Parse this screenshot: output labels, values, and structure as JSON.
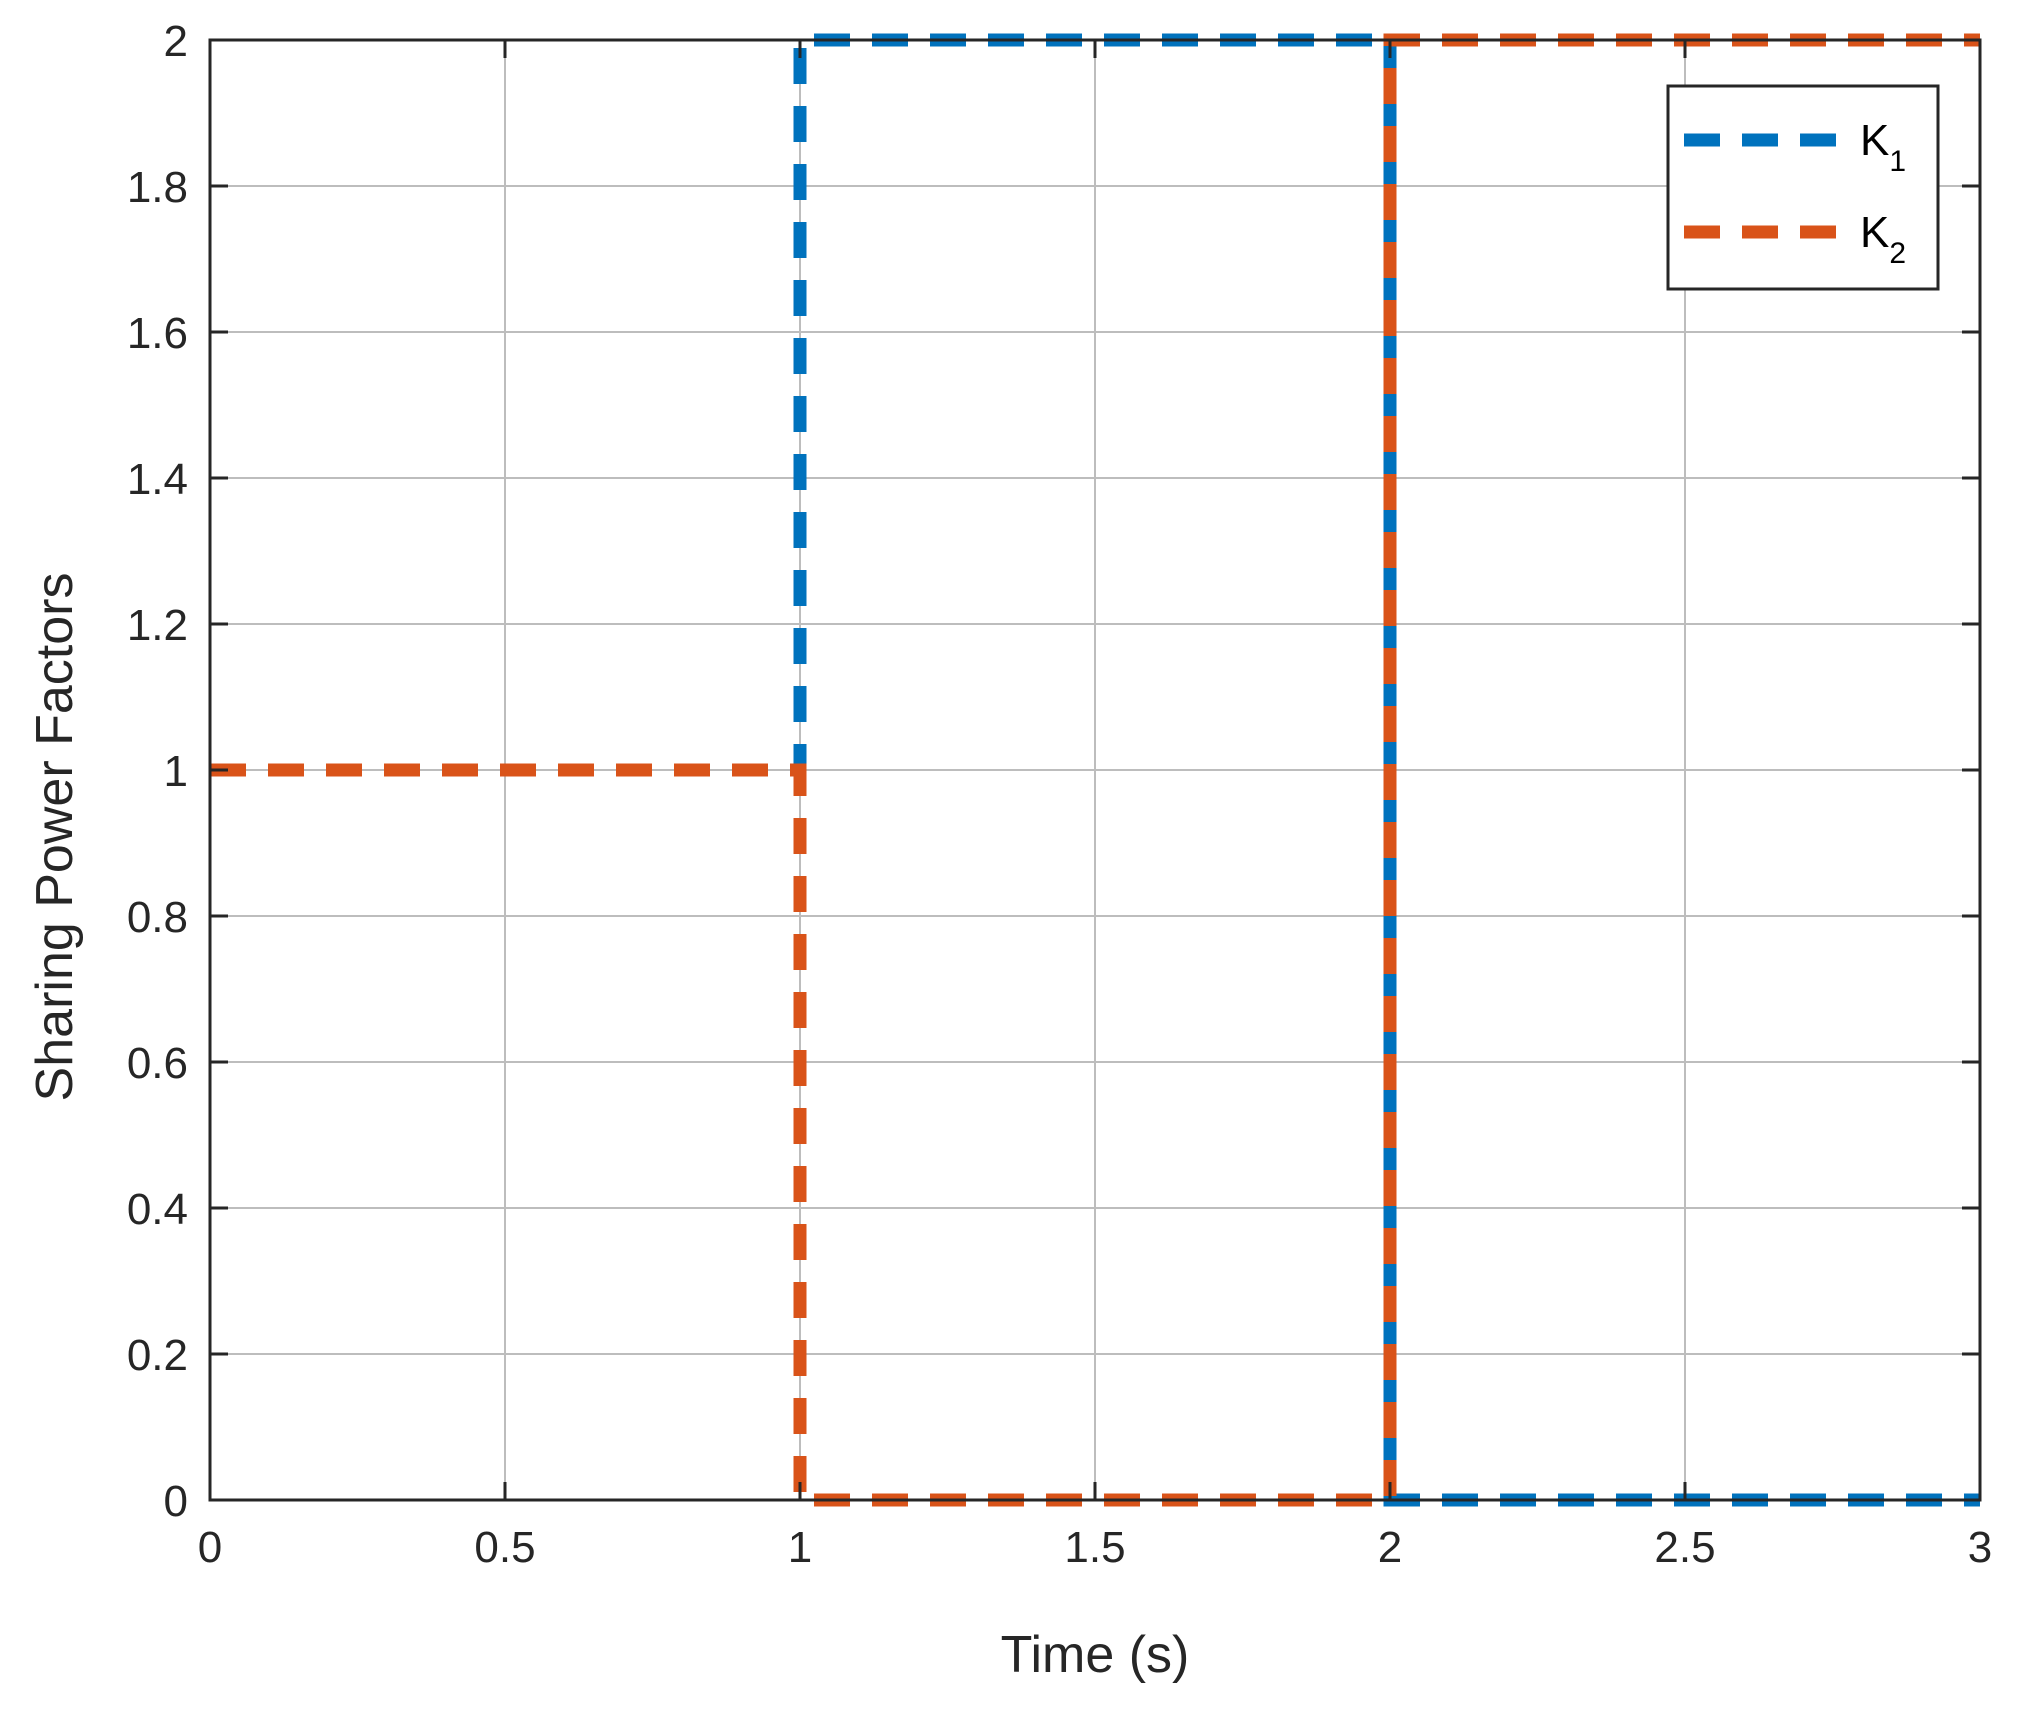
{
  "chart_data": {
    "type": "line",
    "title": "",
    "xlabel": "Time (s)",
    "ylabel": "Sharing Power Factors",
    "xlim": [
      0,
      3
    ],
    "ylim": [
      0,
      2
    ],
    "x_ticks": [
      0,
      0.5,
      1,
      1.5,
      2,
      2.5,
      3
    ],
    "x_tick_labels": [
      "0",
      "0.5",
      "1",
      "1.5",
      "2",
      "2.5",
      "3"
    ],
    "y_ticks": [
      0,
      0.2,
      0.4,
      0.6,
      0.8,
      1,
      1.2,
      1.4,
      1.6,
      1.8,
      2
    ],
    "y_tick_labels": [
      "0",
      "0.2",
      "0.4",
      "0.6",
      "0.8",
      "1",
      "1.2",
      "1.4",
      "1.6",
      "1.8",
      "2"
    ],
    "grid": true,
    "legend_position": "top-right",
    "series": [
      {
        "name": "K",
        "subscript": "1",
        "color": "#0072BD",
        "line_style": "dashed",
        "x": [
          0,
          1,
          1,
          2,
          2,
          3
        ],
        "y": [
          1,
          1,
          2,
          2,
          0,
          0
        ]
      },
      {
        "name": "K",
        "subscript": "2",
        "color": "#D95319",
        "line_style": "dashed",
        "x": [
          0,
          1,
          1,
          2,
          2,
          3
        ],
        "y": [
          1,
          1,
          0,
          0,
          2,
          2
        ]
      }
    ]
  }
}
